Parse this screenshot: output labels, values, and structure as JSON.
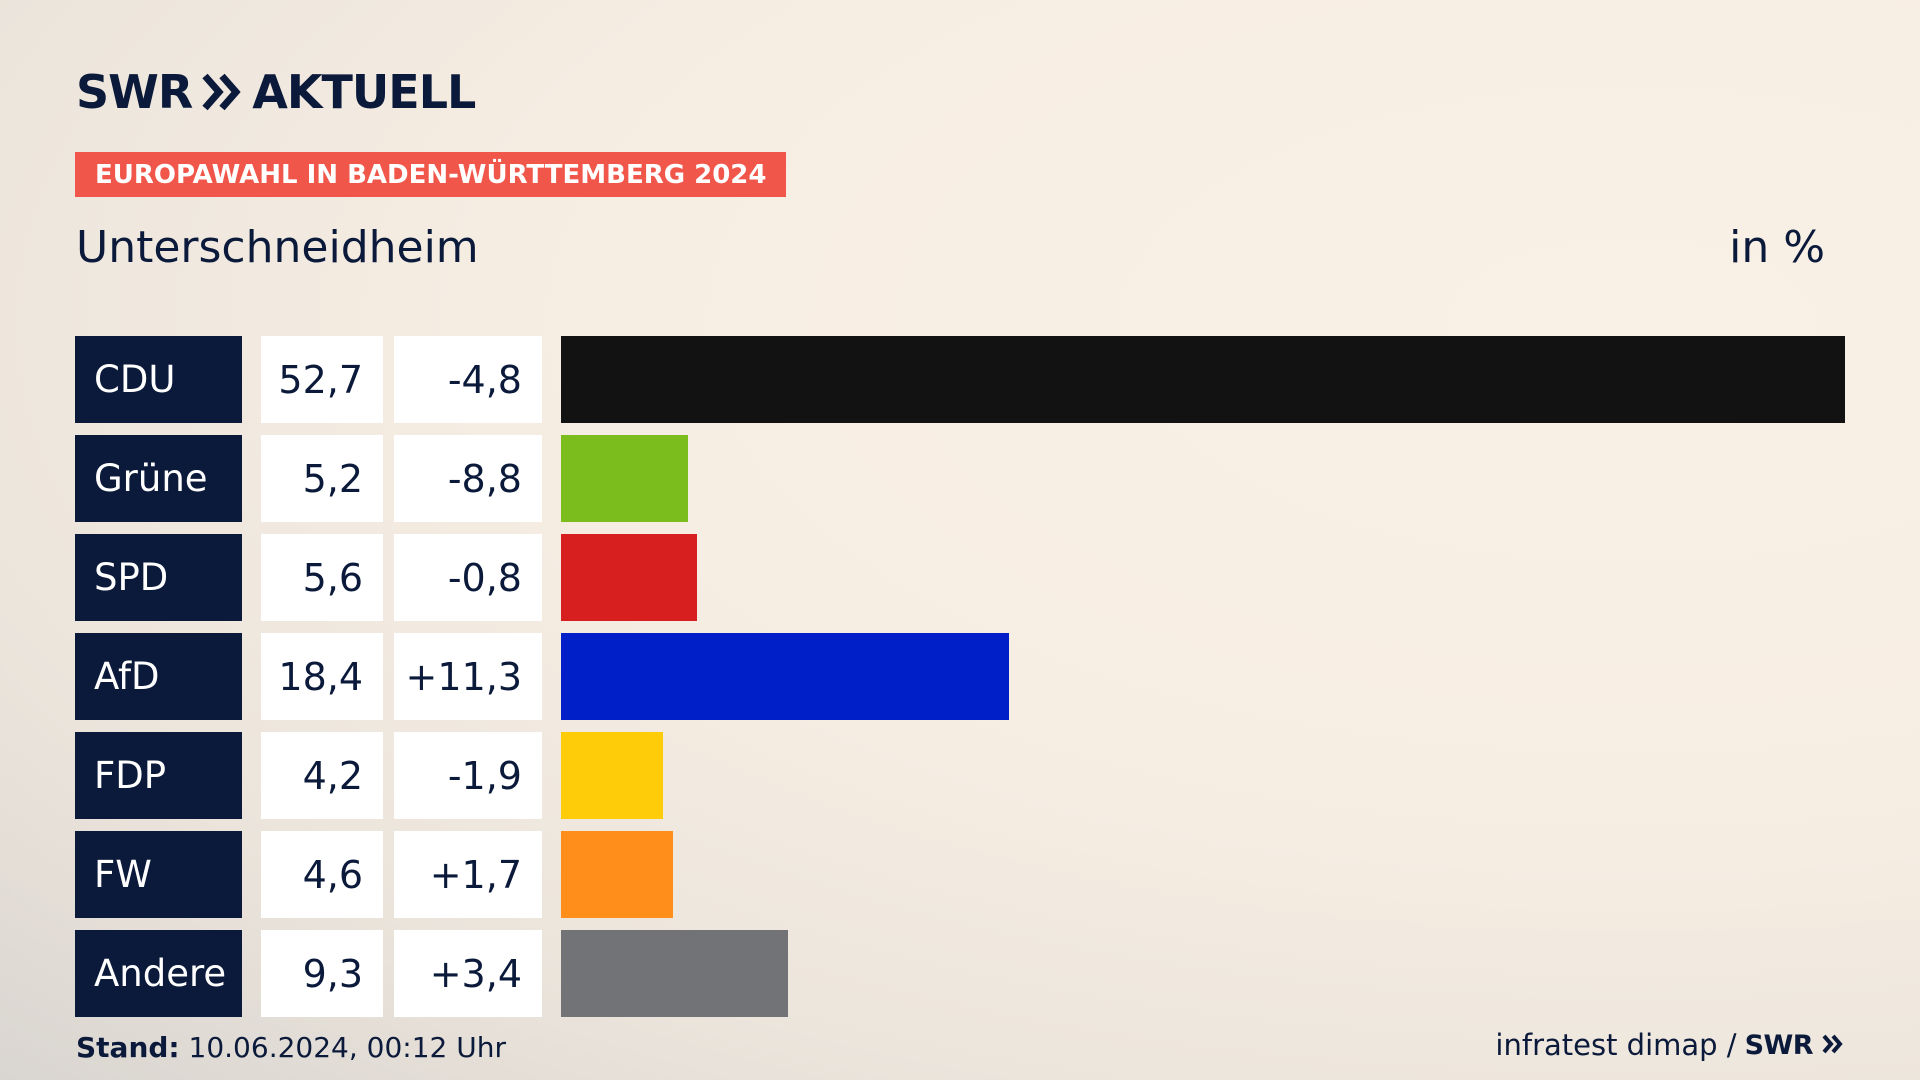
{
  "header": {
    "logo_swr": "SWR",
    "logo_aktuell": "AKTUELL",
    "badge": "EUROPAWAHL IN BADEN-WÜRTTEMBERG 2024",
    "title": "Unterschneidheim",
    "unit": "in %"
  },
  "colors": {
    "navy": "#0b1a3a",
    "badge": "#f0574a"
  },
  "chart_data": {
    "type": "bar",
    "orientation": "horizontal",
    "categories": [
      "CDU",
      "Grüne",
      "SPD",
      "AfD",
      "FDP",
      "FW",
      "Andere"
    ],
    "values": [
      52.7,
      5.2,
      5.6,
      18.4,
      4.2,
      4.6,
      9.3
    ],
    "value_labels": [
      "52,7",
      "5,2",
      "5,6",
      "18,4",
      "4,2",
      "4,6",
      "9,3"
    ],
    "changes": [
      -4.8,
      -8.8,
      -0.8,
      11.3,
      -1.9,
      1.7,
      3.4
    ],
    "change_labels": [
      "-4,8",
      "-8,8",
      "-0,8",
      "+11,3",
      "-1,9",
      "+1,7",
      "+3,4"
    ],
    "bar_colors": [
      "#121212",
      "#7cbd1e",
      "#d71f1f",
      "#001fc8",
      "#ffcc0a",
      "#ff8e1a",
      "#727376"
    ],
    "xlim": [
      0,
      52.7
    ],
    "grid": false,
    "legend": "none"
  },
  "footer": {
    "stand_label": "Stand:",
    "stand_value": "10.06.2024, 00:12 Uhr",
    "source": "infratest dimap /",
    "source_logo": "SWR"
  }
}
